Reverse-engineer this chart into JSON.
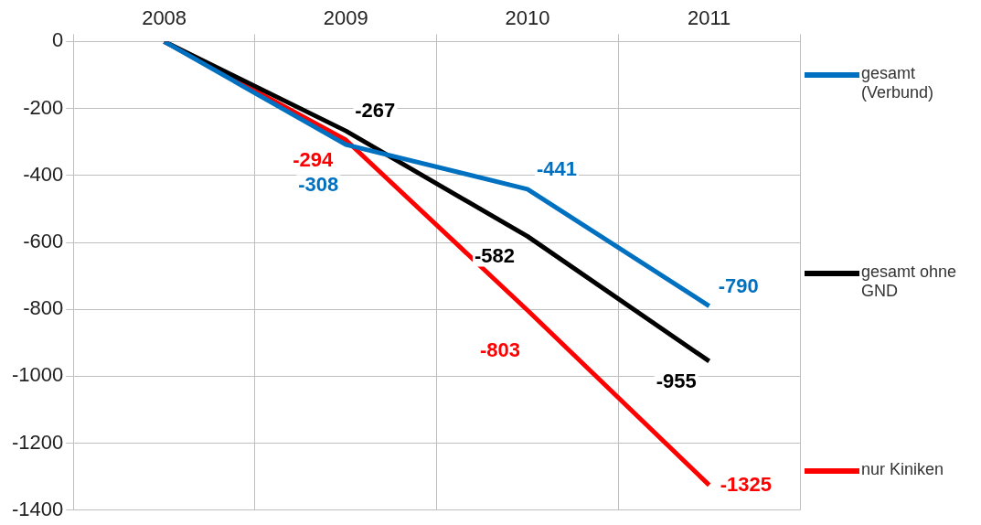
{
  "chart_data": {
    "type": "line",
    "categories": [
      "2008",
      "2009",
      "2010",
      "2011"
    ],
    "ylim": [
      -1400,
      0
    ],
    "yticks": [
      0,
      -200,
      -400,
      -600,
      -800,
      -1000,
      -1200,
      -1400
    ],
    "grid": true,
    "legend": "right",
    "marker": "none",
    "line_style": "solid",
    "series": [
      {
        "name": "gesamt (Verbund)",
        "color": "#0070c0",
        "values": [
          0,
          -308,
          -441,
          -790
        ],
        "value_labels": [
          null,
          "-308",
          "-441",
          "-790"
        ]
      },
      {
        "name": "gesamt ohne GND",
        "color": "#000000",
        "values": [
          0,
          -267,
          -582,
          -955
        ],
        "value_labels": [
          null,
          "-267",
          "-582",
          "-955"
        ]
      },
      {
        "name": "nur Kiniken",
        "color": "#ff0000",
        "values": [
          0,
          -294,
          -803,
          -1325
        ],
        "value_labels": [
          null,
          "-294",
          "-803",
          "-1325"
        ]
      }
    ]
  }
}
